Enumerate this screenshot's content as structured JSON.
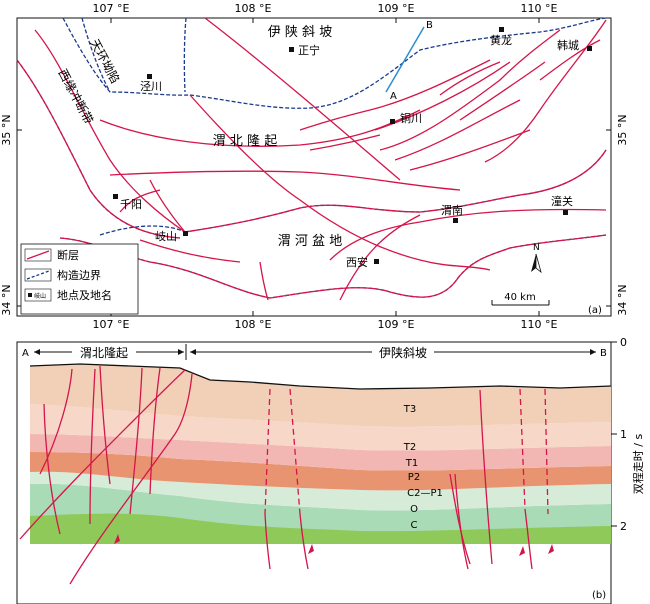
{
  "map": {
    "lon_top": [
      "107 °E",
      "108 °E",
      "109 °E",
      "110 °E"
    ],
    "lon_bottom": [
      "107 °E",
      "108 °E",
      "109 °E",
      "110 °E"
    ],
    "lat_left": [
      "35 °N",
      "34 °N"
    ],
    "lat_right": [
      "35 °N",
      "34 °N"
    ],
    "regions": {
      "tianhuan": "天环坳陷",
      "xiyuan": "西缘冲断带",
      "yishan": "伊 陕 斜 坡",
      "weibei": "渭 北 隆 起",
      "weihe": "渭 河 盆 地"
    },
    "places": {
      "zhengning": "正宁",
      "jingchuan": "泾川",
      "tongchuan": "铜川",
      "huanglong": "黄龙",
      "hancheng": "韩城",
      "qianyang": "千阳",
      "qishan": "岐山",
      "xian": "西安",
      "weinan": "渭南",
      "tongguan": "潼关"
    },
    "profile_a": "A",
    "profile_b": "B",
    "north": "N",
    "scale": "40 km",
    "panel": "(a)",
    "legend": {
      "fault": "断层",
      "boundary": "构造边界",
      "place": "地点及地名",
      "sample_icon": "岐山"
    },
    "colors": {
      "fault": "#d4154a",
      "boundary": "#1a3a8c",
      "profile": "#2a8fd0"
    }
  },
  "section": {
    "label_a": "A",
    "label_b": "B",
    "unit_left": "渭北隆起",
    "unit_right": "伊陕斜坡",
    "axis_title": "双程走时 / s",
    "ticks": [
      "0",
      "1",
      "2"
    ],
    "panel": "(b)",
    "strata": [
      "T3",
      "T2",
      "T1",
      "P2",
      "C2—P1",
      "O",
      "C"
    ],
    "layer_colors": [
      "#f2d0b8",
      "#f6d7c8",
      "#f3b7b3",
      "#e99470",
      "#d7ecd8",
      "#a8dbb6",
      "#8fc95a"
    ]
  }
}
